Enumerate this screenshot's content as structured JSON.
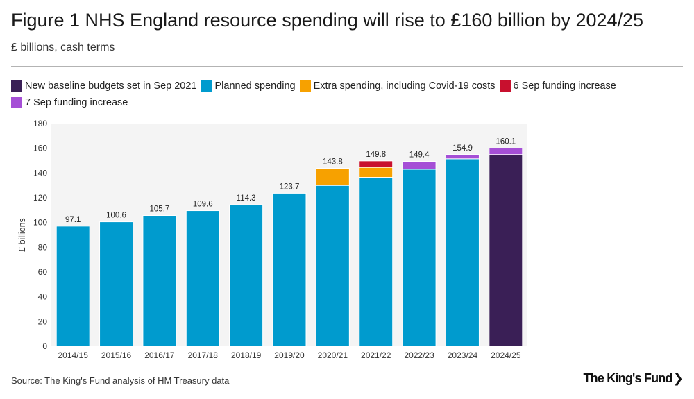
{
  "title": "Figure 1 NHS England resource spending will rise to £160 billion by 2024/25",
  "subtitle": "£ billions, cash terms",
  "source": "Source: The King's Fund analysis of HM Treasury data",
  "brand": {
    "name": "The King's Fund",
    "chevron": "❯"
  },
  "legend": [
    {
      "label": "New baseline budgets set in Sep 2021",
      "color": "#3a1f56"
    },
    {
      "label": "Planned spending",
      "color": "#009bce"
    },
    {
      "label": "Extra spending, including Covid-19 costs",
      "color": "#f7a100"
    },
    {
      "label": "6 Sep funding increase",
      "color": "#c8102e"
    },
    {
      "label": "7 Sep funding increase",
      "color": "#a54fd6"
    }
  ],
  "chart_data": {
    "type": "bar",
    "stacked": true,
    "categories": [
      "2014/15",
      "2015/16",
      "2016/17",
      "2017/18",
      "2018/19",
      "2019/20",
      "2020/21",
      "2021/22",
      "2022/23",
      "2023/24",
      "2024/25"
    ],
    "series": [
      {
        "name": "New baseline budgets set in Sep 2021",
        "color": "#3a1f56",
        "values": [
          0,
          0,
          0,
          0,
          0,
          0,
          0,
          0,
          0,
          0,
          154.9
        ]
      },
      {
        "name": "Planned spending",
        "color": "#009bce",
        "values": [
          97.1,
          100.6,
          105.7,
          109.6,
          114.3,
          123.7,
          130.0,
          136.5,
          143.0,
          151.5,
          0
        ]
      },
      {
        "name": "Extra spending, including Covid-19 costs",
        "color": "#f7a100",
        "values": [
          0,
          0,
          0,
          0,
          0,
          0,
          13.8,
          8.1,
          0,
          0,
          0
        ]
      },
      {
        "name": "6 Sep funding increase",
        "color": "#c8102e",
        "values": [
          0,
          0,
          0,
          0,
          0,
          0,
          0,
          5.2,
          0,
          0,
          0
        ]
      },
      {
        "name": "7 Sep funding increase",
        "color": "#a54fd6",
        "values": [
          0,
          0,
          0,
          0,
          0,
          0,
          0,
          0,
          6.4,
          3.4,
          5.2
        ]
      }
    ],
    "totals": [
      "97.1",
      "100.6",
      "105.7",
      "109.6",
      "114.3",
      "123.7",
      "143.8",
      "149.8",
      "149.4",
      "154.9",
      "160.1"
    ],
    "ylabel": "£ billions",
    "xlabel": "",
    "ylim": [
      0,
      180
    ],
    "yticks": [
      0,
      20,
      40,
      60,
      80,
      100,
      120,
      140,
      160,
      180
    ],
    "grid": false,
    "legend_position": "top"
  }
}
